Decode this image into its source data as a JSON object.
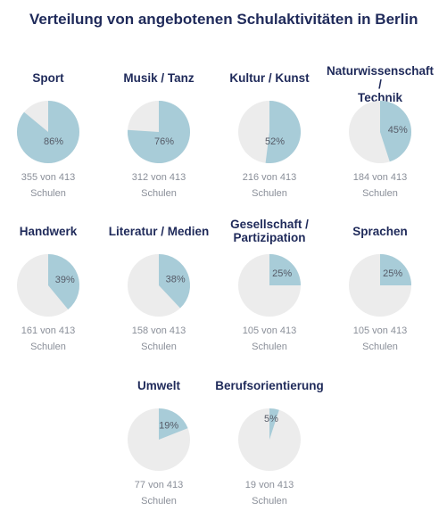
{
  "title": "Verteilung von angebotenen Schulaktivitäten in Berlin",
  "colors": {
    "filled": "#a8ccd8",
    "empty": "#ececec",
    "text": "#1f2a5a",
    "muted": "#8a8f99"
  },
  "chart_data": {
    "type": "pie",
    "title": "Verteilung von angebotenen Schulaktivitäten in Berlin",
    "total": 413,
    "items": [
      {
        "label": "Sport",
        "percent": 86,
        "percent_label": "86%",
        "count_label": "355 von 413",
        "unit_label": "Schulen"
      },
      {
        "label": "Musik / Tanz",
        "percent": 76,
        "percent_label": "76%",
        "count_label": "312 von 413",
        "unit_label": "Schulen"
      },
      {
        "label": "Kultur / Kunst",
        "percent": 52,
        "percent_label": "52%",
        "count_label": "216 von 413",
        "unit_label": "Schulen"
      },
      {
        "label": "Naturwissenschaft / Technik",
        "percent": 45,
        "percent_label": "45%",
        "count_label": "184 von 413",
        "unit_label": "Schulen"
      },
      {
        "label": "Handwerk",
        "percent": 39,
        "percent_label": "39%",
        "count_label": "161 von 413",
        "unit_label": "Schulen"
      },
      {
        "label": "Literatur / Medien",
        "percent": 38,
        "percent_label": "38%",
        "count_label": "158 von 413",
        "unit_label": "Schulen"
      },
      {
        "label": "Gesellschaft / Partizipation",
        "percent": 25,
        "percent_label": "25%",
        "count_label": "105 von 413",
        "unit_label": "Schulen"
      },
      {
        "label": "Sprachen",
        "percent": 25,
        "percent_label": "25%",
        "count_label": "105 von 413",
        "unit_label": "Schulen"
      },
      {
        "label": "Umwelt",
        "percent": 19,
        "percent_label": "19%",
        "count_label": "77 von 413",
        "unit_label": "Schulen"
      },
      {
        "label": "Berufsorientierung",
        "percent": 5,
        "percent_label": "5%",
        "count_label": "19 von 413",
        "unit_label": "Schulen"
      }
    ]
  }
}
